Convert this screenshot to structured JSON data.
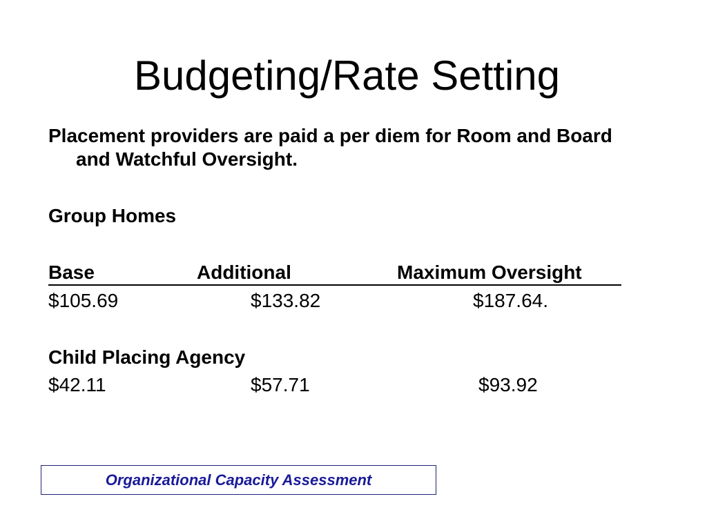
{
  "slide": {
    "title": "Budgeting/Rate Setting",
    "intro": "Placement providers are paid a per diem for Room and Board and Watchful Oversight."
  },
  "group_homes": {
    "heading": "Group Homes",
    "columns": [
      "Base",
      "Additional",
      "Maximum Oversight"
    ],
    "values": [
      "$105.69",
      "$133.82",
      "$187.64."
    ]
  },
  "child_placing_agency": {
    "heading": "Child Placing Agency",
    "values": [
      "$42.11",
      "$57.71",
      "$93.92"
    ]
  },
  "footer": {
    "label": "Organizational Capacity Assessment"
  },
  "colors": {
    "background": "#ffffff",
    "text": "#000000",
    "footer_text": "#1a1a99",
    "footer_border": "#1f1f7a"
  }
}
